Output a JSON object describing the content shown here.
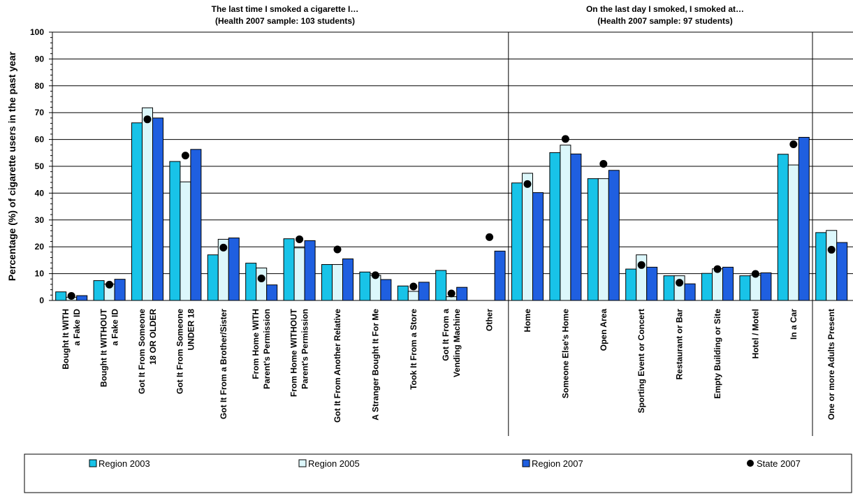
{
  "chart_data": {
    "type": "bar",
    "panel_titles": [
      {
        "line1": "The last time I smoked a cigarette I…",
        "line2": "(Health 2007 sample: 103 students)"
      },
      {
        "line1": "On the last day I smoked, I smoked at…",
        "line2": "(Health 2007 sample: 97 students)"
      }
    ],
    "ylabel": "Percentage (%) of cigarette users in the past year",
    "ylim": [
      0,
      100
    ],
    "yticks": [
      "0",
      "10",
      "20",
      "30",
      "40",
      "50",
      "60",
      "70",
      "80",
      "90",
      "100"
    ],
    "grid": true,
    "legend_position": "bottom",
    "categories": [
      [
        "Bought It WITH",
        "a Fake ID"
      ],
      [
        "Bought It WITHOUT",
        "a Fake ID"
      ],
      [
        "Got It From Someone",
        "18 OR OLDER"
      ],
      [
        "Got It From Someone",
        "UNDER 18"
      ],
      [
        "Got It From a Brother/Sister"
      ],
      [
        "From Home WITH",
        "Parent's Permission"
      ],
      [
        "From Home WITHOUT",
        "Parent's Permission"
      ],
      [
        "Got It From Another Relative"
      ],
      [
        "A Stranger Bought It For Me"
      ],
      [
        "Took It From a Store"
      ],
      [
        "Got It From a",
        "Vending Machine"
      ],
      [
        "Other"
      ],
      [
        "Home"
      ],
      [
        "Someone Else's Home"
      ],
      [
        "Open Area"
      ],
      [
        "Sporting Event or Concert"
      ],
      [
        "Restaurant or Bar"
      ],
      [
        "Empty Building or Site"
      ],
      [
        "Hotel / Motel"
      ],
      [
        "In a Car"
      ],
      [
        "One or more Adults Present"
      ]
    ],
    "series": [
      {
        "name": "Region 2003",
        "kind": "bar",
        "color": "#18c3e8",
        "values": [
          3.2,
          7.4,
          66.2,
          51.8,
          17.0,
          13.9,
          23.0,
          13.4,
          10.6,
          5.4,
          11.2,
          0,
          43.8,
          55.1,
          45.4,
          11.7,
          9.2,
          10.1,
          9.2,
          54.5,
          25.3
        ]
      },
      {
        "name": "Region 2005",
        "kind": "bar",
        "color": "#dcf7fb",
        "values": [
          1.2,
          6.1,
          71.8,
          44.2,
          22.8,
          12.1,
          19.6,
          13.4,
          9.4,
          3.4,
          1.4,
          0,
          47.4,
          57.9,
          45.4,
          17.0,
          9.2,
          11.8,
          9.4,
          50.5,
          26.1
        ]
      },
      {
        "name": "Region 2007",
        "kind": "bar",
        "color": "#1f5fe0",
        "values": [
          1.8,
          7.9,
          68.0,
          56.3,
          23.3,
          5.8,
          22.3,
          15.5,
          7.8,
          6.8,
          4.9,
          18.4,
          40.2,
          54.6,
          48.5,
          12.4,
          6.2,
          12.4,
          10.3,
          60.8,
          21.6
        ]
      },
      {
        "name": "State 2007",
        "kind": "dot",
        "color": "#000000",
        "values": [
          1.7,
          5.9,
          67.5,
          54.0,
          19.7,
          8.2,
          22.8,
          19.0,
          9.4,
          5.2,
          2.6,
          23.6,
          43.4,
          60.2,
          50.9,
          13.2,
          6.6,
          11.7,
          9.9,
          58.2,
          18.9
        ]
      }
    ]
  }
}
